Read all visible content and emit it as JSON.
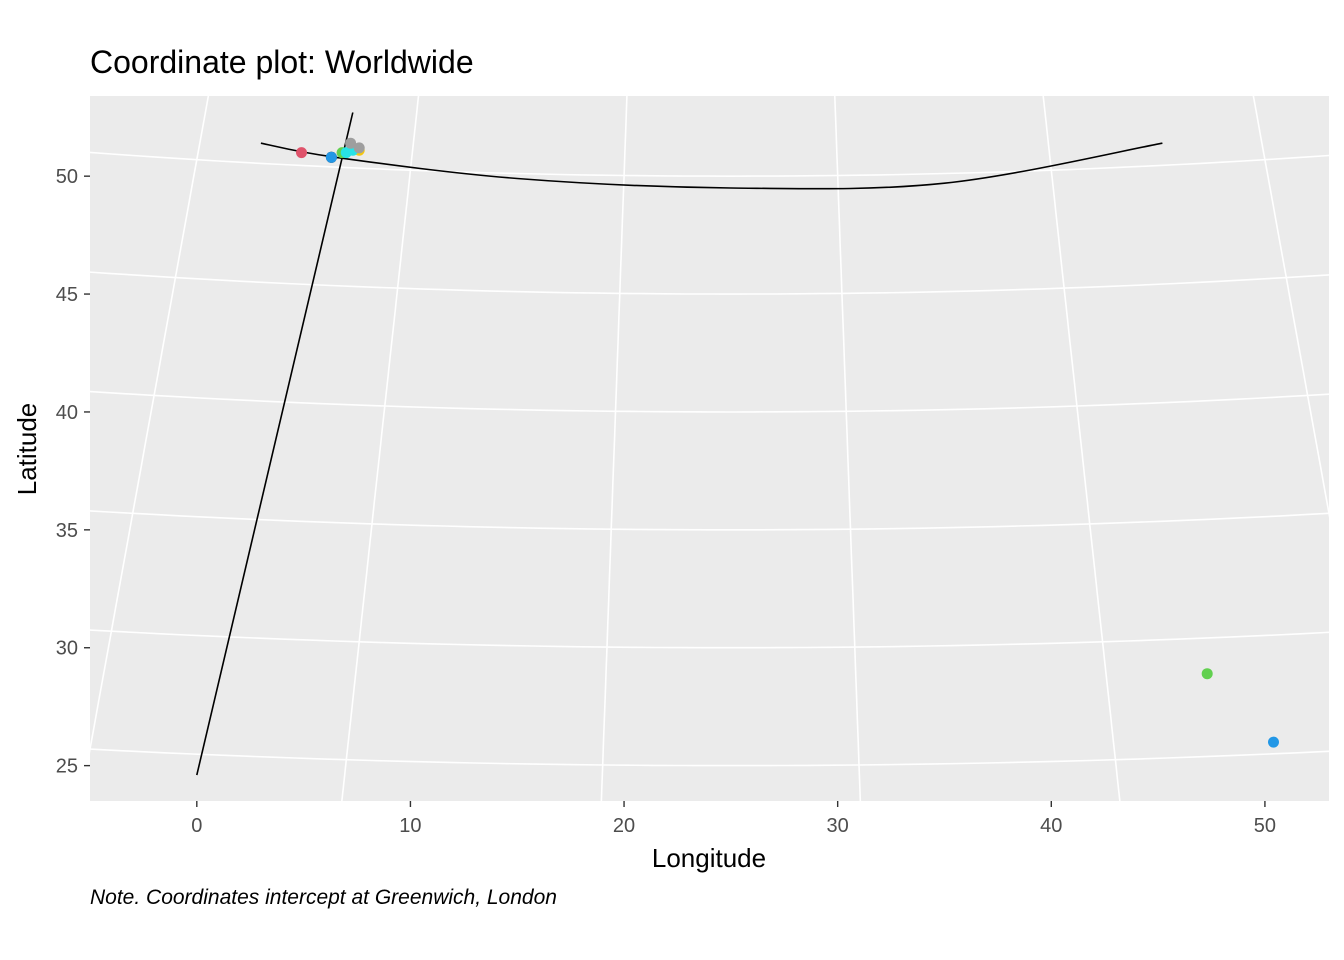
{
  "chart_data": {
    "type": "scatter",
    "title": "Coordinate plot: Worldwide",
    "xlabel": "Longitude",
    "ylabel": "Latitude",
    "note": "Note. Coordinates intercept at Greenwich, London",
    "xlim": [
      -5,
      53
    ],
    "ylim": [
      23.5,
      53.4
    ],
    "x_ticks": [
      0,
      10,
      20,
      30,
      40,
      50
    ],
    "y_ticks": [
      25,
      30,
      35,
      40,
      45,
      50
    ],
    "grid": true,
    "panel_color": "#EBEBEB",
    "grid_color": "#FFFFFF",
    "projection": "conic (curved graticule)",
    "points": [
      {
        "lon": 4.9,
        "lat": 51.0,
        "color": "#DF536B"
      },
      {
        "lon": 6.3,
        "lat": 50.8,
        "color": "#000000"
      },
      {
        "lon": 6.3,
        "lat": 50.8,
        "color": "#2297E6"
      },
      {
        "lon": 6.8,
        "lat": 51.0,
        "color": "#61D04F"
      },
      {
        "lon": 7.0,
        "lat": 51.0,
        "color": "#28E2E5"
      },
      {
        "lon": 7.6,
        "lat": 51.1,
        "color": "#F5C710"
      },
      {
        "lon": 7.3,
        "lat": 51.1,
        "color": "#28E2E5"
      },
      {
        "lon": 7.2,
        "lat": 51.4,
        "color": "#9E9E9E"
      },
      {
        "lon": 7.6,
        "lat": 51.2,
        "color": "#9E9E9E"
      },
      {
        "lon": 47.3,
        "lat": 28.9,
        "color": "#61D04F"
      },
      {
        "lon": 50.4,
        "lat": 26.0,
        "color": "#2297E6"
      }
    ],
    "reference_lines": [
      {
        "name": "meridian",
        "points": [
          [
            7.3,
            52.7
          ],
          [
            0.0,
            24.6
          ]
        ]
      },
      {
        "name": "parallel",
        "points": [
          [
            3.0,
            51.4
          ],
          [
            6.5,
            50.8
          ],
          [
            15.0,
            49.9
          ],
          [
            25.0,
            49.5
          ],
          [
            35.0,
            49.7
          ],
          [
            45.2,
            51.4
          ]
        ]
      }
    ]
  }
}
